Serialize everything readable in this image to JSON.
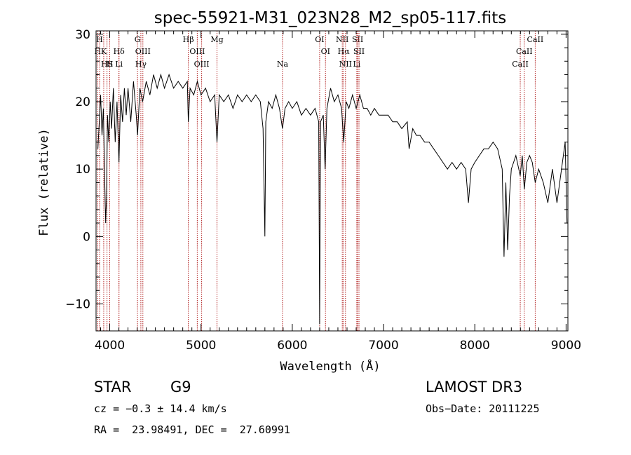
{
  "chart_data": {
    "type": "line",
    "title": "spec-55921-M31_023N28_M2_sp05-117.fits",
    "xlabel": "Wavelength (Å)",
    "ylabel": "Flux (relative)",
    "xlim": [
      3850,
      9020
    ],
    "ylim": [
      -14,
      30.5
    ],
    "xticks": [
      4000,
      5000,
      6000,
      7000,
      8000,
      9000
    ],
    "yticks": [
      -10,
      0,
      10,
      20,
      30
    ],
    "grid": false,
    "series": [
      {
        "line_color": "#000000",
        "points": [
          [
            3870,
            13
          ],
          [
            3885,
            17
          ],
          [
            3900,
            21
          ],
          [
            3915,
            15
          ],
          [
            3930,
            19
          ],
          [
            3945,
            8
          ],
          [
            3955,
            2
          ],
          [
            3965,
            6
          ],
          [
            3975,
            18
          ],
          [
            3990,
            14
          ],
          [
            4005,
            20
          ],
          [
            4020,
            16
          ],
          [
            4040,
            22
          ],
          [
            4060,
            14
          ],
          [
            4080,
            20
          ],
          [
            4101,
            11
          ],
          [
            4120,
            21
          ],
          [
            4140,
            17
          ],
          [
            4160,
            22
          ],
          [
            4180,
            18
          ],
          [
            4200,
            22
          ],
          [
            4230,
            17
          ],
          [
            4260,
            23
          ],
          [
            4290,
            18
          ],
          [
            4305,
            15
          ],
          [
            4330,
            22
          ],
          [
            4360,
            20
          ],
          [
            4400,
            23
          ],
          [
            4440,
            21
          ],
          [
            4480,
            24
          ],
          [
            4520,
            22
          ],
          [
            4560,
            24
          ],
          [
            4600,
            22
          ],
          [
            4650,
            24
          ],
          [
            4700,
            22
          ],
          [
            4750,
            23
          ],
          [
            4800,
            22
          ],
          [
            4850,
            23
          ],
          [
            4861,
            17
          ],
          [
            4880,
            22
          ],
          [
            4920,
            21
          ],
          [
            4960,
            23
          ],
          [
            5000,
            21
          ],
          [
            5050,
            22
          ],
          [
            5100,
            20
          ],
          [
            5150,
            21
          ],
          [
            5175,
            14
          ],
          [
            5200,
            21
          ],
          [
            5250,
            20
          ],
          [
            5300,
            21
          ],
          [
            5350,
            19
          ],
          [
            5400,
            21
          ],
          [
            5450,
            20
          ],
          [
            5500,
            21
          ],
          [
            5550,
            20
          ],
          [
            5600,
            21
          ],
          [
            5650,
            20
          ],
          [
            5680,
            16
          ],
          [
            5700,
            0
          ],
          [
            5710,
            17
          ],
          [
            5740,
            20
          ],
          [
            5780,
            19
          ],
          [
            5820,
            21
          ],
          [
            5860,
            19
          ],
          [
            5893,
            16
          ],
          [
            5920,
            19
          ],
          [
            5960,
            20
          ],
          [
            6000,
            19
          ],
          [
            6050,
            20
          ],
          [
            6100,
            18
          ],
          [
            6150,
            19
          ],
          [
            6200,
            18
          ],
          [
            6250,
            19
          ],
          [
            6290,
            17
          ],
          [
            6300,
            -13
          ],
          [
            6310,
            17
          ],
          [
            6340,
            18
          ],
          [
            6360,
            10
          ],
          [
            6380,
            19
          ],
          [
            6420,
            22
          ],
          [
            6460,
            20
          ],
          [
            6500,
            21
          ],
          [
            6540,
            19
          ],
          [
            6563,
            14
          ],
          [
            6590,
            20
          ],
          [
            6620,
            19
          ],
          [
            6660,
            21
          ],
          [
            6700,
            19
          ],
          [
            6740,
            21
          ],
          [
            6780,
            19
          ],
          [
            6820,
            19
          ],
          [
            6860,
            18
          ],
          [
            6900,
            19
          ],
          [
            6950,
            18
          ],
          [
            7000,
            18
          ],
          [
            7050,
            18
          ],
          [
            7100,
            17
          ],
          [
            7150,
            17
          ],
          [
            7200,
            16
          ],
          [
            7260,
            17
          ],
          [
            7280,
            13
          ],
          [
            7320,
            16
          ],
          [
            7360,
            15
          ],
          [
            7400,
            15
          ],
          [
            7450,
            14
          ],
          [
            7500,
            14
          ],
          [
            7550,
            13
          ],
          [
            7600,
            12
          ],
          [
            7650,
            11
          ],
          [
            7700,
            10
          ],
          [
            7750,
            11
          ],
          [
            7800,
            10
          ],
          [
            7850,
            11
          ],
          [
            7900,
            10
          ],
          [
            7930,
            5
          ],
          [
            7960,
            10
          ],
          [
            8000,
            11
          ],
          [
            8050,
            12
          ],
          [
            8100,
            13
          ],
          [
            8150,
            13
          ],
          [
            8200,
            14
          ],
          [
            8250,
            13
          ],
          [
            8300,
            10
          ],
          [
            8320,
            -3
          ],
          [
            8340,
            8
          ],
          [
            8360,
            -2
          ],
          [
            8380,
            6
          ],
          [
            8400,
            10
          ],
          [
            8450,
            12
          ],
          [
            8498,
            9
          ],
          [
            8520,
            12
          ],
          [
            8542,
            7
          ],
          [
            8570,
            11
          ],
          [
            8600,
            12
          ],
          [
            8630,
            11
          ],
          [
            8662,
            8
          ],
          [
            8700,
            10
          ],
          [
            8750,
            8
          ],
          [
            8800,
            5
          ],
          [
            8850,
            10
          ],
          [
            8900,
            5
          ],
          [
            8950,
            10
          ],
          [
            8990,
            14
          ],
          [
            9010,
            2
          ]
        ]
      }
    ],
    "lines": [
      {
        "w": 3868,
        "label": "H",
        "row": 1
      },
      {
        "w": 3889,
        "label": "H",
        "row": 0
      },
      {
        "w": 3934,
        "label": "K",
        "row": 1
      },
      {
        "w": 3970,
        "label": "HS",
        "row": 2
      },
      {
        "w": 4000,
        "label": "H",
        "row": 2
      },
      {
        "w": 4101,
        "label": "Hδ",
        "row": 1
      },
      {
        "w": 4101,
        "label": "Li",
        "row": 2
      },
      {
        "w": 4304,
        "label": "G",
        "row": 0
      },
      {
        "w": 4341,
        "label": "Hγ",
        "row": 2
      },
      {
        "w": 4363,
        "label": "OIII",
        "row": 1
      },
      {
        "w": 4861,
        "label": "Hβ",
        "row": 0
      },
      {
        "w": 4959,
        "label": "OIII",
        "row": 1
      },
      {
        "w": 5007,
        "label": "OIII",
        "row": 2
      },
      {
        "w": 5175,
        "label": "Mg",
        "row": 0
      },
      {
        "w": 5893,
        "label": "Na",
        "row": 2
      },
      {
        "w": 6300,
        "label": "OI",
        "row": 0
      },
      {
        "w": 6364,
        "label": "OI",
        "row": 1
      },
      {
        "w": 6548,
        "label": "NII",
        "row": 0
      },
      {
        "w": 6563,
        "label": "Hα",
        "row": 1
      },
      {
        "w": 6583,
        "label": "NII",
        "row": 2
      },
      {
        "w": 6707,
        "label": "Li",
        "row": 2
      },
      {
        "w": 6716,
        "label": "SII",
        "row": 0
      },
      {
        "w": 6731,
        "label": "SII",
        "row": 1
      },
      {
        "w": 8498,
        "label": "CaII",
        "row": 2
      },
      {
        "w": 8542,
        "label": "CaII",
        "row": 1
      },
      {
        "w": 8662,
        "label": "CaII",
        "row": 0
      }
    ]
  },
  "info": {
    "class": "STAR",
    "subclass": "G9",
    "survey": "LAMOST DR3",
    "cz": "cz = −0.3 ± 14.4 km/s",
    "obs_date": "Obs−Date: 20111225",
    "radec": "RA =  23.98491, DEC =  27.60991"
  },
  "colors": {
    "line_marker": "#b22222",
    "axis": "#000000"
  }
}
